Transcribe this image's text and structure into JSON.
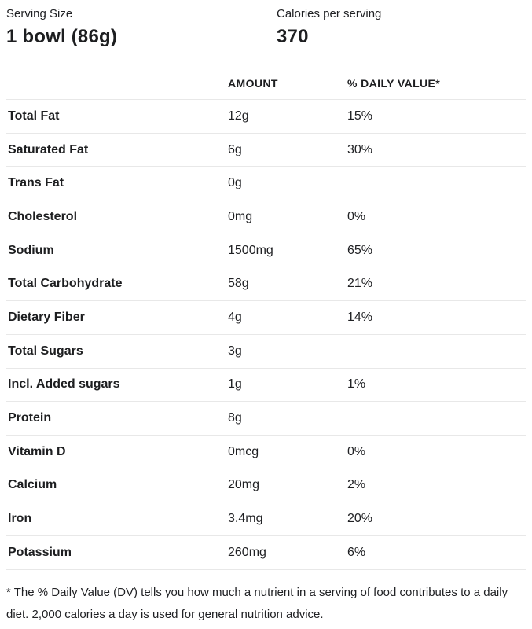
{
  "header": {
    "serving_size_label": "Serving Size",
    "serving_size_value": "1 bowl (86g)",
    "calories_label": "Calories per serving",
    "calories_value": "370"
  },
  "table": {
    "columns": {
      "amount": "AMOUNT",
      "daily_value": "% DAILY VALUE*"
    },
    "rows": [
      {
        "nutrient": "Total Fat",
        "amount": "12g",
        "daily_value": "15%"
      },
      {
        "nutrient": "Saturated Fat",
        "amount": "6g",
        "daily_value": "30%"
      },
      {
        "nutrient": "Trans Fat",
        "amount": "0g",
        "daily_value": ""
      },
      {
        "nutrient": "Cholesterol",
        "amount": "0mg",
        "daily_value": "0%"
      },
      {
        "nutrient": "Sodium",
        "amount": "1500mg",
        "daily_value": "65%"
      },
      {
        "nutrient": "Total Carbohydrate",
        "amount": "58g",
        "daily_value": "21%"
      },
      {
        "nutrient": "Dietary Fiber",
        "amount": "4g",
        "daily_value": "14%"
      },
      {
        "nutrient": "Total Sugars",
        "amount": "3g",
        "daily_value": ""
      },
      {
        "nutrient": "Incl. Added sugars",
        "amount": "1g",
        "daily_value": "1%"
      },
      {
        "nutrient": "Protein",
        "amount": "8g",
        "daily_value": ""
      },
      {
        "nutrient": "Vitamin D",
        "amount": "0mcg",
        "daily_value": "0%"
      },
      {
        "nutrient": "Calcium",
        "amount": "20mg",
        "daily_value": "2%"
      },
      {
        "nutrient": "Iron",
        "amount": "3.4mg",
        "daily_value": "20%"
      },
      {
        "nutrient": "Potassium",
        "amount": "260mg",
        "daily_value": "6%"
      }
    ]
  },
  "footnote": "* The % Daily Value (DV) tells you how much a nutrient in a serving of food contributes to a daily diet. 2,000 calories a day is used for general nutrition advice.",
  "colors": {
    "text": "#202124",
    "divider": "#e8e8e8",
    "background": "#ffffff"
  }
}
